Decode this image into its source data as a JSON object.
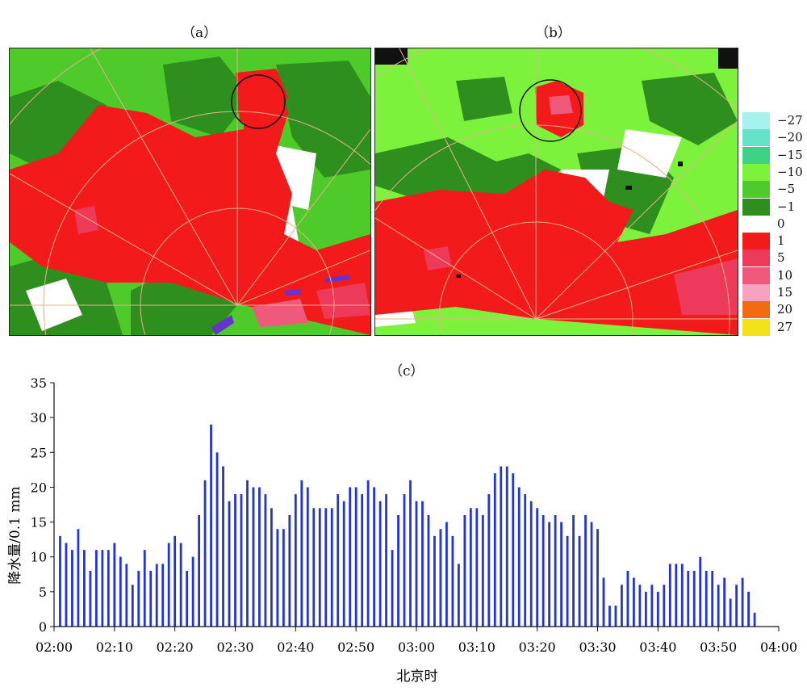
{
  "panels": {
    "a_label": "（a）",
    "b_label": "（b）",
    "c_label": "（c）"
  },
  "legend": {
    "items": [
      {
        "label": "−27",
        "color": "#a6f2ef"
      },
      {
        "label": "−20",
        "color": "#66e0c8"
      },
      {
        "label": "−15",
        "color": "#3fd184"
      },
      {
        "label": "−10",
        "color": "#7cf23c"
      },
      {
        "label": "−5",
        "color": "#4ecb2a"
      },
      {
        "label": "−1",
        "color": "#2f8f1e"
      },
      {
        "label": "0",
        "color": "#ffffff"
      },
      {
        "label": "1",
        "color": "#f21a1a"
      },
      {
        "label": "5",
        "color": "#ee3a5a"
      },
      {
        "label": "10",
        "color": "#ef5a7c"
      },
      {
        "label": "15",
        "color": "#f7a3c0"
      },
      {
        "label": "20",
        "color": "#f26a12"
      },
      {
        "label": "27",
        "color": "#f3e21a"
      }
    ]
  },
  "chart_data": {
    "type": "bar",
    "title": "",
    "xlabel": "北京时",
    "ylabel": "降水量/0.1 mm",
    "ylim": [
      0,
      35
    ],
    "yticks": [
      0,
      5,
      10,
      15,
      20,
      25,
      30,
      35
    ],
    "xticks": [
      "02:00",
      "02:10",
      "02:20",
      "02:30",
      "02:40",
      "02:50",
      "03:00",
      "03:10",
      "03:20",
      "03:30",
      "03:40",
      "03:50",
      "04:00"
    ],
    "x_start": "02:00",
    "x_end": "04:00",
    "interval_minutes": 1,
    "series": [
      {
        "color": "#2233dd",
        "values": [
          13,
          12,
          11,
          14,
          11,
          8,
          11,
          11,
          11,
          12,
          10,
          9,
          6,
          8,
          11,
          8,
          9,
          9,
          12,
          13,
          12,
          8,
          10,
          16,
          21,
          29,
          25,
          23,
          18,
          19,
          19,
          21,
          20,
          20,
          19,
          17,
          14,
          14,
          16,
          19,
          21,
          20,
          17,
          17,
          17,
          17,
          19,
          18,
          20,
          20,
          19,
          21,
          20,
          18,
          19,
          11,
          16,
          19,
          21,
          18,
          18,
          16,
          13,
          14,
          15,
          13,
          9,
          16,
          17,
          17,
          16,
          19,
          22,
          23,
          23,
          22,
          20,
          19,
          18,
          17,
          16,
          15,
          16,
          15,
          13,
          16,
          13,
          16,
          15,
          14,
          7,
          3,
          3,
          6,
          8,
          7,
          6,
          5,
          6,
          5,
          6,
          9,
          9,
          9,
          8,
          8,
          10,
          8,
          8,
          6,
          7,
          4,
          6,
          7,
          5,
          2
        ]
      }
    ]
  }
}
